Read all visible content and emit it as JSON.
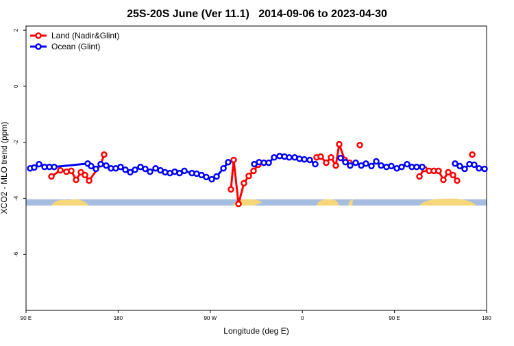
{
  "chart_data": {
    "type": "line",
    "title": "25S-20S June (Ver 11.1)   2014-09-06 to 2023-04-30",
    "x_label": "Longitude (deg E)",
    "y_label": "XCO2 - MLO trend (ppm)",
    "xlim": [
      90,
      540
    ],
    "xticks": [
      {
        "value": 90,
        "label": "90 E"
      },
      {
        "value": 180,
        "label": "180"
      },
      {
        "value": 270,
        "label": "90 W"
      },
      {
        "value": 360,
        "label": "0"
      },
      {
        "value": 450,
        "label": "90 E"
      },
      {
        "value": 540,
        "label": "180"
      }
    ],
    "ylim": [
      -8.0,
      2.15
    ],
    "yticks": [
      2,
      0,
      -2,
      -4,
      -6
    ],
    "legend": "top-left",
    "series": [
      {
        "name": "Land (Nadir&Glint)",
        "color": "#ff0000",
        "x": [
          114.8,
          123.5,
          129.5,
          134.2,
          138.9,
          143.6,
          147.6,
          151.6,
          163.0,
          166.3,
          null,
          290.2,
          292.9,
          297.6,
          302.9,
          307.6,
          312.3,
          317.0,
          null,
          373.9,
          377.9,
          383.3,
          388.0,
          392.7,
          396.0,
          401.4,
          406.1,
          null,
          416.1,
          null,
          474.4,
          479.1,
          483.8,
          488.5,
          493.1,
          497.8,
          502.5,
          507.2,
          511.2,
          null,
          526.0
        ],
        "values": [
          -3.22,
          -3.0,
          -3.05,
          -3.02,
          -3.34,
          -3.07,
          -3.17,
          -3.37,
          -2.78,
          -2.44,
          null,
          -3.68,
          -2.63,
          -4.2,
          -3.46,
          -3.2,
          -3.02,
          -2.8,
          null,
          -2.54,
          -2.51,
          -2.73,
          -2.54,
          -2.83,
          -2.07,
          -2.63,
          -2.73,
          null,
          -2.1,
          null,
          -3.22,
          -2.95,
          -3.02,
          -3.02,
          -3.02,
          -3.34,
          -3.07,
          -3.17,
          -3.37,
          null,
          -2.44
        ]
      },
      {
        "name": "Ocean (Glint)",
        "color": "#0000ff",
        "x": [
          94.0,
          98.0,
          102.7,
          108.1,
          112.8,
          117.5,
          150.3,
          153.6,
          158.3,
          163.0,
          168.3,
          173.0,
          177.7,
          182.4,
          187.1,
          191.8,
          196.5,
          201.8,
          206.5,
          211.2,
          216.6,
          221.3,
          225.9,
          230.6,
          235.3,
          240.0,
          244.7,
          252.1,
          256.7,
          261.4,
          266.1,
          271.5,
          276.2,
          282.9,
          287.5,
          null,
          313.0,
          317.7,
          322.4,
          327.1,
          332.4,
          337.8,
          342.5,
          347.1,
          352.5,
          357.2,
          361.9,
          367.2,
          372.6,
          null,
          397.4,
          402.1,
          406.7,
          412.1,
          417.5,
          422.1,
          427.5,
          432.2,
          436.9,
          442.2,
          446.9,
          452.3,
          457.0,
          462.3,
          467.0,
          471.7,
          477.1,
          null,
          509.2,
          513.9,
          518.6,
          523.3,
          527.9,
          532.6,
          538.0
        ],
        "values": [
          -2.93,
          -2.9,
          -2.78,
          -2.88,
          -2.88,
          -2.88,
          -2.76,
          -2.85,
          -2.95,
          -2.78,
          -2.83,
          -2.93,
          -2.93,
          -2.88,
          -2.98,
          -3.07,
          -2.98,
          -2.88,
          -2.95,
          -3.05,
          -2.93,
          -3.0,
          -3.07,
          -3.1,
          -3.05,
          -3.1,
          -3.02,
          -3.1,
          -3.12,
          -3.17,
          -3.24,
          -3.32,
          -3.22,
          -2.93,
          -2.71,
          null,
          -2.78,
          -2.71,
          -2.73,
          -2.73,
          -2.54,
          -2.49,
          -2.51,
          -2.54,
          -2.54,
          -2.59,
          -2.61,
          -2.63,
          -2.78,
          null,
          -2.56,
          -2.71,
          -2.83,
          -2.73,
          -2.83,
          -2.76,
          -2.85,
          -2.68,
          -2.83,
          -2.88,
          -2.85,
          -2.93,
          -2.88,
          -2.78,
          -2.88,
          -2.88,
          -2.88,
          null,
          -2.76,
          -2.85,
          -2.95,
          -2.78,
          -2.8,
          -2.93,
          -2.95
        ]
      }
    ]
  }
}
